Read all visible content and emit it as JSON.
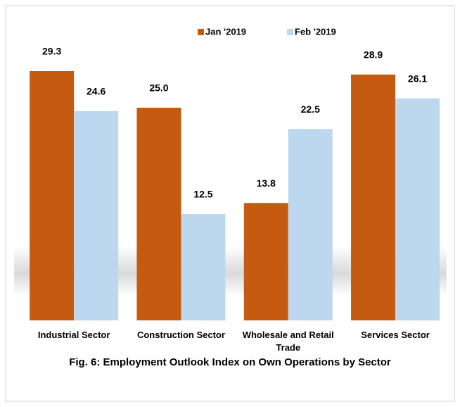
{
  "chart_data": {
    "type": "bar",
    "title": "Fig. 6: Employment Outlook  Index on Own Operations by Sector",
    "categories": [
      "Industrial Sector",
      "Construction Sector",
      "Wholesale and Retail Trade",
      "Services Sector"
    ],
    "series": [
      {
        "name": "Jan '2019",
        "color": "#c55a11",
        "values": [
          29.3,
          25,
          13.8,
          28.9
        ],
        "value_labels": [
          "29.3",
          "25.0",
          "13.8",
          "28.9"
        ]
      },
      {
        "name": "Feb '2019",
        "color": "#bdd7ee",
        "values": [
          24.6,
          12.5,
          22.5,
          26.1
        ],
        "value_labels": [
          "24.6",
          "12.5",
          "22.5",
          "26.1"
        ]
      }
    ],
    "legend": "top"
  }
}
